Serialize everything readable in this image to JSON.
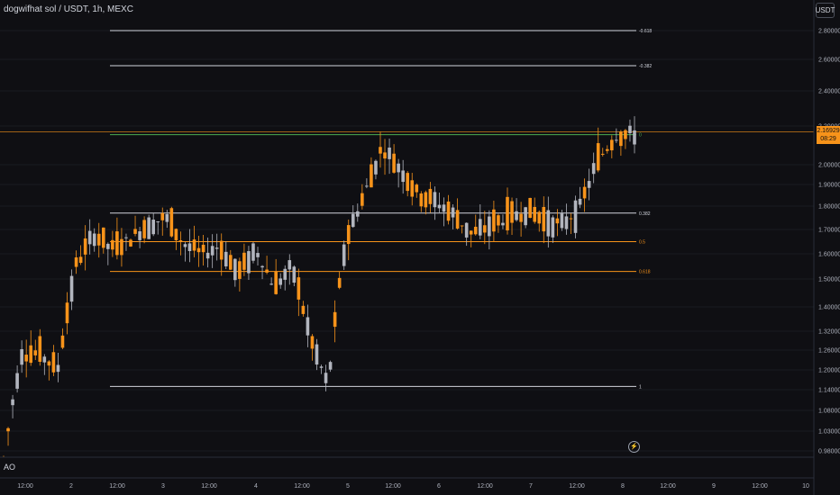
{
  "title": "dogwifhat sol / USDT, 1h, MEXC",
  "currency_button": "USDT",
  "indicator_label": "AO",
  "price_tag": {
    "price": "2.16929",
    "countdown": "08:29"
  },
  "alert_icon": "bolt-icon",
  "colors": {
    "background": "#0f0f13",
    "up": "#f7931a",
    "down": "#b2b5be",
    "fib_white": "#d1d4dc",
    "fib_orange": "#f7931a",
    "fib_green": "#4caf50",
    "current_price_line": "#f7931a"
  },
  "chart_data": {
    "type": "candlestick",
    "symbol": "dogwifhat sol / USDT",
    "timeframe": "1h",
    "exchange": "MEXC",
    "ylim": [
      0.95,
      2.92
    ],
    "y_ticks": [
      "2.80000",
      "2.60000",
      "2.40000",
      "2.20000",
      "2.00000",
      "1.90000",
      "1.80000",
      "1.70000",
      "1.60000",
      "1.50000",
      "1.40000",
      "1.32000",
      "1.26000",
      "1.20000",
      "1.14000",
      "1.08000",
      "1.03000",
      "0.98000"
    ],
    "x_ticks": [
      "12:00",
      "2",
      "12:00",
      "3",
      "12:00",
      "4",
      "12:00",
      "5",
      "12:00",
      "6",
      "12:00",
      "7",
      "12:00",
      "8",
      "12:00",
      "9",
      "12:00",
      "10"
    ],
    "current_price": 2.16929,
    "fib_levels": [
      {
        "label": "-0.618",
        "value": 2.8,
        "color": "white"
      },
      {
        "label": "-0.382",
        "value": 2.56,
        "color": "white"
      },
      {
        "label": "0",
        "value": 2.155,
        "color": "green"
      },
      {
        "label": "0.382",
        "value": 1.77,
        "color": "white"
      },
      {
        "label": "0.5",
        "value": 1.65,
        "color": "orange"
      },
      {
        "label": "0.618",
        "value": 1.53,
        "color": "orange"
      },
      {
        "label": "1",
        "value": 1.15,
        "color": "white"
      }
    ],
    "anchors": [
      [
        0.98,
        0.9,
        1.4,
        0.96
      ],
      [
        1.2,
        1.2,
        1.34,
        1.25
      ],
      [
        1.3,
        1.2,
        1.36,
        1.25
      ],
      [
        1.27,
        1.13,
        1.31,
        1.2
      ],
      [
        1.35,
        1.17,
        1.8,
        1.55
      ],
      [
        1.8,
        1.55,
        1.84,
        1.68
      ],
      [
        1.7,
        1.58,
        1.72,
        1.62
      ],
      [
        1.65,
        1.58,
        1.72,
        1.66
      ],
      [
        1.73,
        1.6,
        1.78,
        1.72
      ],
      [
        1.85,
        1.65,
        1.87,
        1.75
      ],
      [
        1.69,
        1.54,
        1.72,
        1.64
      ],
      [
        1.7,
        1.55,
        1.75,
        1.6
      ],
      [
        1.72,
        1.45,
        1.76,
        1.63
      ],
      [
        1.6,
        1.5,
        1.66,
        1.52
      ],
      [
        1.75,
        1.45,
        1.78,
        1.62
      ],
      [
        1.52,
        1.41,
        1.6,
        1.47
      ],
      [
        1.8,
        1.4,
        1.85,
        1.55
      ],
      [
        1.65,
        1.26,
        1.7,
        1.3
      ],
      [
        1.25,
        1.15,
        1.3,
        1.15
      ],
      [
        1.62,
        1.05,
        1.68,
        1.66
      ],
      [
        1.9,
        1.6,
        1.95,
        1.85
      ],
      [
        2.13,
        1.9,
        2.18,
        2.09
      ],
      [
        2.05,
        1.9,
        2.11,
        1.98
      ],
      [
        1.93,
        1.8,
        1.96,
        1.85
      ],
      [
        1.87,
        1.79,
        1.89,
        1.82
      ],
      [
        1.8,
        1.74,
        1.83,
        1.76
      ],
      [
        1.77,
        1.66,
        1.78,
        1.68
      ],
      [
        1.74,
        1.7,
        1.79,
        1.72
      ],
      [
        1.77,
        1.71,
        1.8,
        1.75
      ],
      [
        1.83,
        1.68,
        1.85,
        1.78
      ],
      [
        1.8,
        1.7,
        1.81,
        1.74
      ],
      [
        1.74,
        1.7,
        1.76,
        1.72
      ],
      [
        1.81,
        1.7,
        1.82,
        1.8
      ],
      [
        2.05,
        1.85,
        2.1,
        2.03
      ],
      [
        2.1,
        2.02,
        2.19,
        2.15
      ],
      [
        2.17,
        2.13,
        2.2,
        2.16
      ]
    ]
  }
}
